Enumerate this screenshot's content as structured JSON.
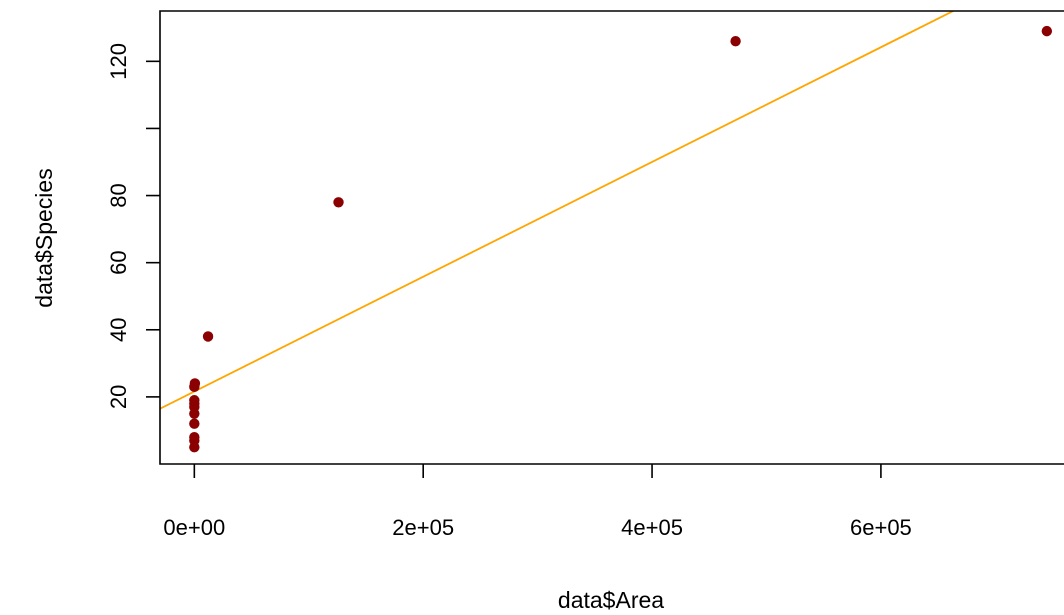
{
  "chart_data": {
    "type": "scatter",
    "title": "",
    "xlabel": "data$Area",
    "ylabel": "data$Species",
    "xlim": [
      -30000,
      760000
    ],
    "ylim": [
      0,
      135
    ],
    "x_ticks": [
      0,
      200000,
      400000,
      600000
    ],
    "x_tick_labels": [
      "0e+00",
      "2e+05",
      "4e+05",
      "6e+05"
    ],
    "y_ticks": [
      20,
      40,
      60,
      80,
      100,
      120
    ],
    "y_tick_labels": [
      "20",
      "40",
      "60",
      "80",
      "",
      "120"
    ],
    "grid": false,
    "box": "open-right",
    "series": [
      {
        "color": "#8B0000",
        "points": [
          {
            "x": 0,
            "y": 5
          },
          {
            "x": 0,
            "y": 7
          },
          {
            "x": 0,
            "y": 8
          },
          {
            "x": 0,
            "y": 12
          },
          {
            "x": 0,
            "y": 15
          },
          {
            "x": 0,
            "y": 17
          },
          {
            "x": 0,
            "y": 18
          },
          {
            "x": 0,
            "y": 19
          },
          {
            "x": 0,
            "y": 23
          },
          {
            "x": 500,
            "y": 24
          },
          {
            "x": 12000,
            "y": 38
          },
          {
            "x": 126000,
            "y": 78
          },
          {
            "x": 473000,
            "y": 126
          },
          {
            "x": 745000,
            "y": 129
          }
        ]
      }
    ],
    "fit_line": {
      "color": "#FFA500",
      "intercept": 21.6,
      "slope": 0.000171
    }
  }
}
